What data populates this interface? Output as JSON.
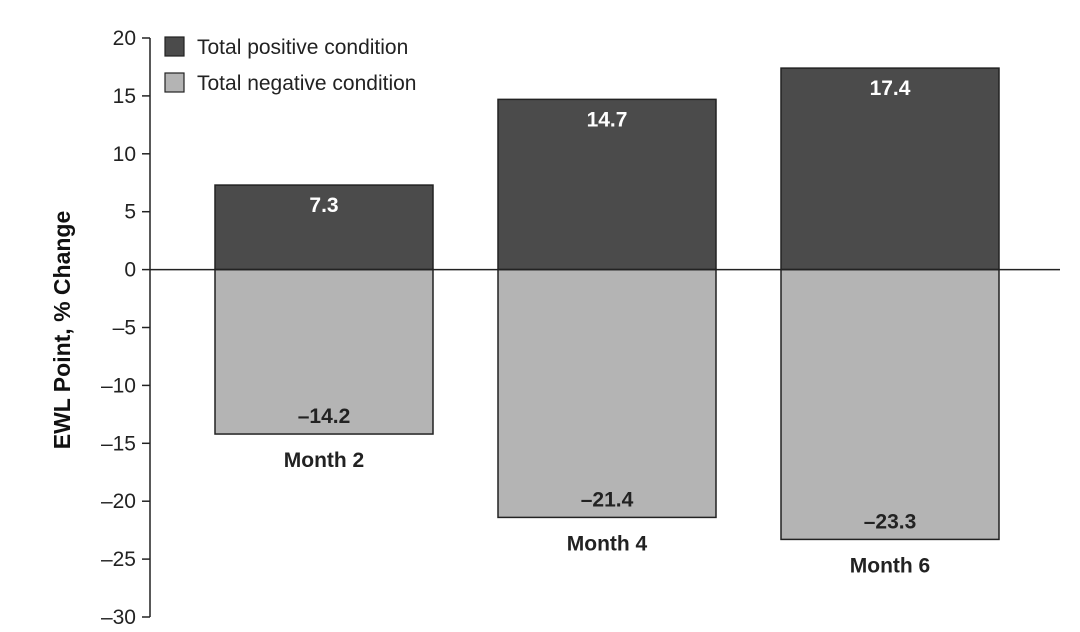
{
  "chart_data": {
    "type": "bar",
    "categories": [
      "Month 2",
      "Month 4",
      "Month 6"
    ],
    "series": [
      {
        "name": "Total positive condition",
        "values": [
          7.3,
          14.7,
          17.4
        ],
        "color": "#4b4b4b",
        "label_color": "#ffffff"
      },
      {
        "name": "Total negative condition",
        "values": [
          -14.2,
          -21.4,
          -23.3
        ],
        "color": "#b4b4b4",
        "label_color": "#222222"
      }
    ],
    "value_labels": {
      "positive": [
        "7.3",
        "14.7",
        "17.4"
      ],
      "negative": [
        "–14.2",
        "–21.4",
        "–23.3"
      ]
    },
    "ylabel": "EWL Point, % Change",
    "xlabel": "",
    "title": "",
    "ylim": [
      -30,
      20
    ],
    "yticks": [
      20,
      15,
      10,
      5,
      0,
      -5,
      -10,
      -15,
      -20,
      -25,
      -30
    ],
    "ytick_labels": [
      "20",
      "15",
      "10",
      "5",
      "0",
      "–5",
      "–10",
      "–15",
      "–20",
      "–25",
      "–30"
    ],
    "legend_position": "top-left",
    "grid": false
  }
}
